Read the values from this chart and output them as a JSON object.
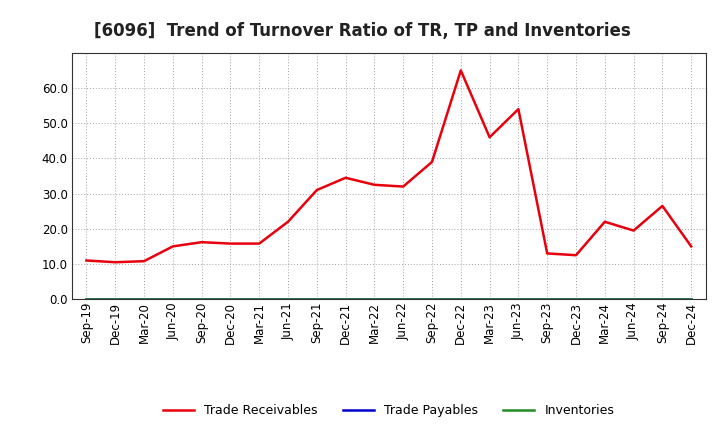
{
  "title": "[6096]  Trend of Turnover Ratio of TR, TP and Inventories",
  "x_labels": [
    "Sep-19",
    "Dec-19",
    "Mar-20",
    "Jun-20",
    "Sep-20",
    "Dec-20",
    "Mar-21",
    "Jun-21",
    "Sep-21",
    "Dec-21",
    "Mar-22",
    "Jun-22",
    "Sep-22",
    "Dec-22",
    "Mar-23",
    "Jun-23",
    "Sep-23",
    "Dec-23",
    "Mar-24",
    "Jun-24",
    "Sep-24",
    "Dec-24"
  ],
  "trade_receivables": [
    11.0,
    10.5,
    10.8,
    15.0,
    16.2,
    15.8,
    15.8,
    22.0,
    31.0,
    34.5,
    32.5,
    32.0,
    39.0,
    65.0,
    46.0,
    54.0,
    13.0,
    12.5,
    22.0,
    19.5,
    26.5,
    15.0
  ],
  "trade_payables": [
    0,
    0,
    0,
    0,
    0,
    0,
    0,
    0,
    0,
    0,
    0,
    0,
    0,
    0,
    0,
    0,
    0,
    0,
    0,
    0,
    0,
    0
  ],
  "inventories": [
    0,
    0,
    0,
    0,
    0,
    0,
    0,
    0,
    0,
    0,
    0,
    0,
    0,
    0,
    0,
    0,
    0,
    0,
    0,
    0,
    0,
    0
  ],
  "tr_color": "#e8000d",
  "tp_color": "#0000cd",
  "inv_color": "#228B22",
  "ylim": [
    0.0,
    70.0
  ],
  "yticks": [
    0.0,
    10.0,
    20.0,
    30.0,
    40.0,
    50.0,
    60.0
  ],
  "background_color": "#ffffff",
  "plot_bg_color": "#ffffff",
  "grid_color": "#999999",
  "legend_labels": [
    "Trade Receivables",
    "Trade Payables",
    "Inventories"
  ],
  "title_fontsize": 12,
  "tick_fontsize": 8.5
}
